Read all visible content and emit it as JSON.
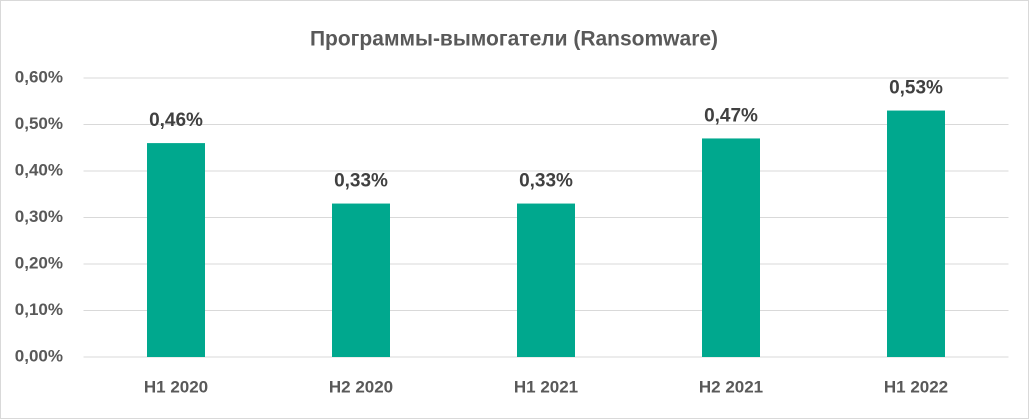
{
  "chart_data": {
    "type": "bar",
    "title": "Программы-вымогатели (Ransomware)",
    "categories": [
      "H1 2020",
      "H2 2020",
      "H1 2021",
      "H2 2021",
      "H1 2022"
    ],
    "values": [
      0.46,
      0.33,
      0.33,
      0.47,
      0.53
    ],
    "value_labels": [
      "0,46%",
      "0,33%",
      "0,33%",
      "0,47%",
      "0,53%"
    ],
    "color": "#00a88e",
    "ylim": [
      0,
      0.6
    ],
    "yticks": [
      {
        "value": 0,
        "label": "0,00%"
      },
      {
        "value": 0.1,
        "label": "0,10%"
      },
      {
        "value": 0.2,
        "label": "0,20%"
      },
      {
        "value": 0.3,
        "label": "0,30%"
      },
      {
        "value": 0.4,
        "label": "0,40%"
      },
      {
        "value": 0.5,
        "label": "0,50%"
      },
      {
        "value": 0.6,
        "label": "0,60%"
      }
    ],
    "grid": true
  }
}
